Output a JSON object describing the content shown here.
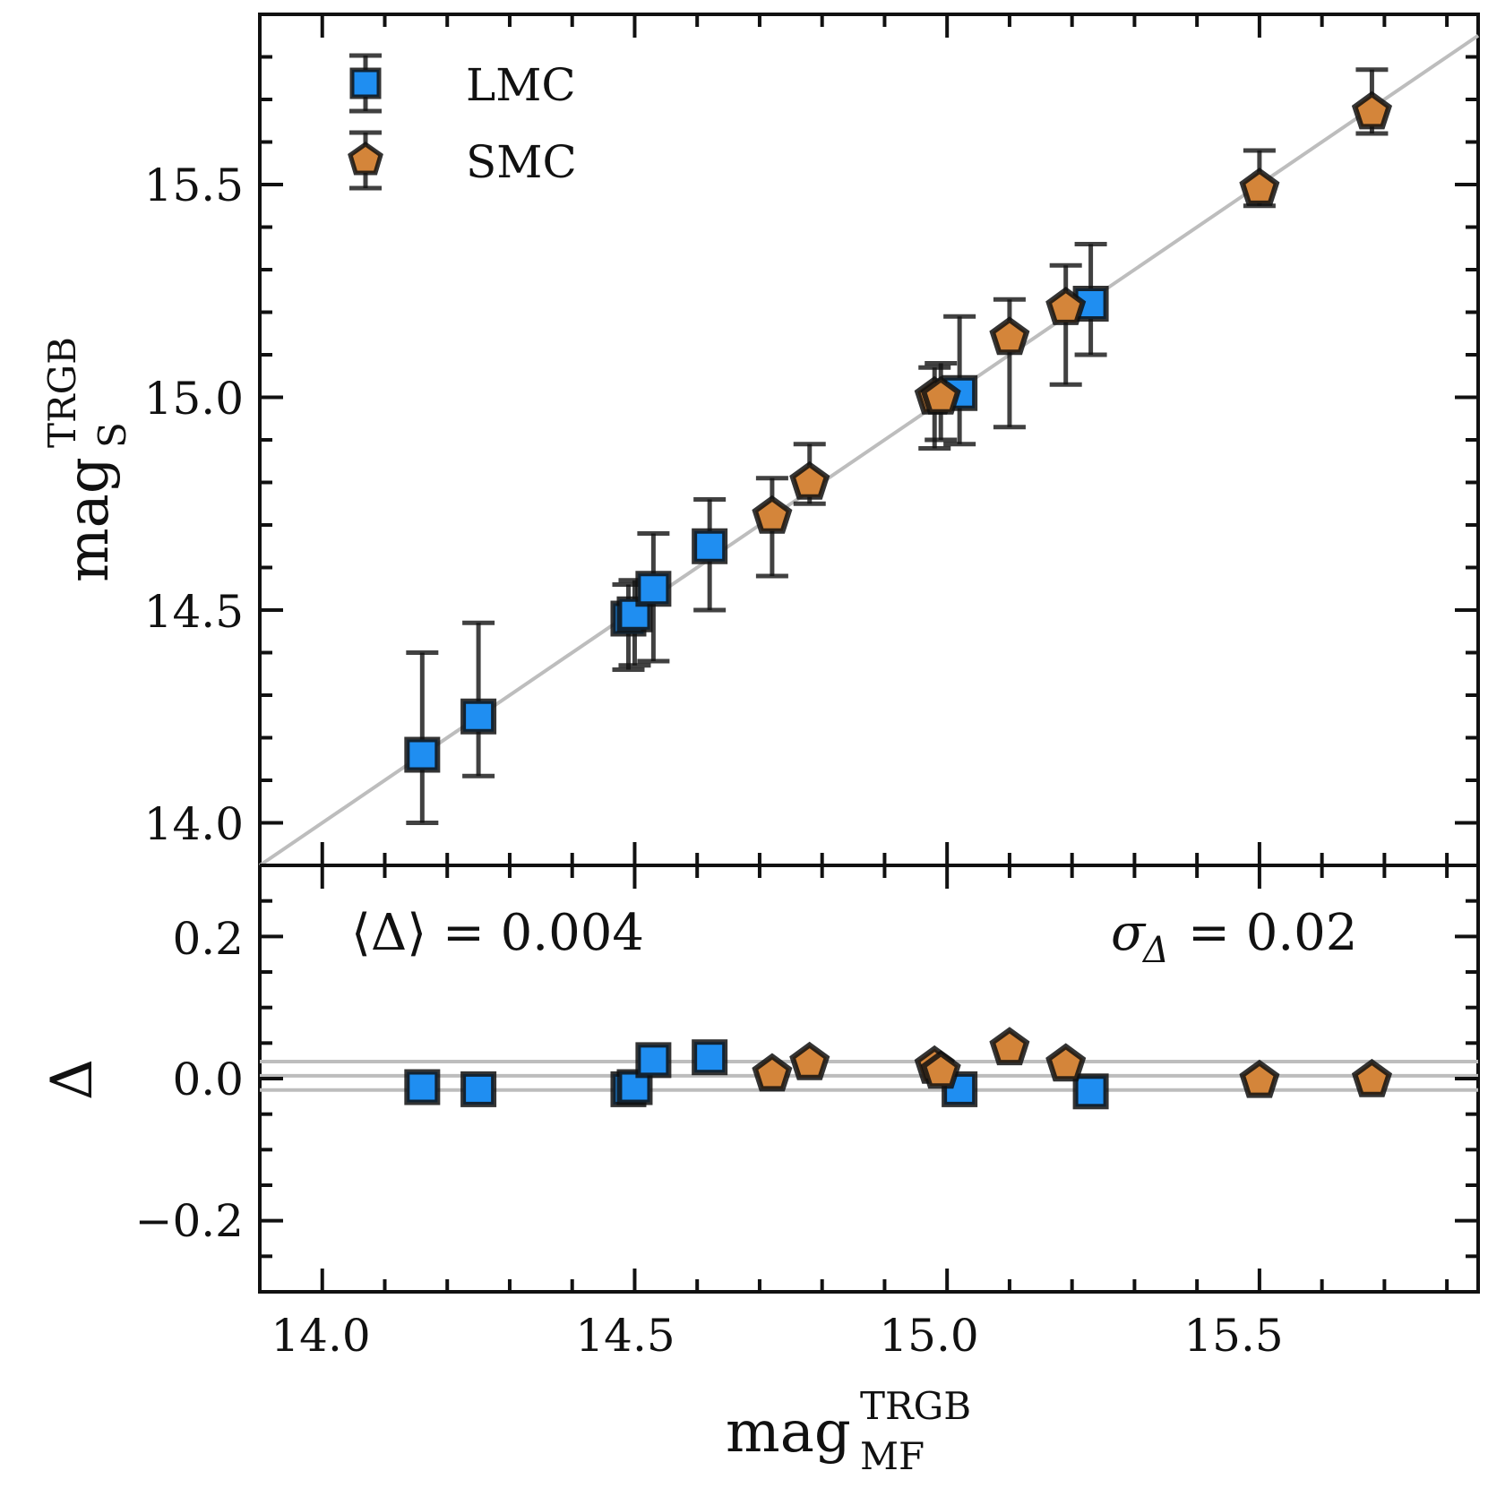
{
  "chart_data": {
    "type": "scatter",
    "colors": {
      "LMC": "#1f8ef1",
      "SMC": "#d4853a",
      "edge": "#111111",
      "line": "#bdbdbd"
    },
    "top_panel": {
      "xlim": [
        13.9,
        15.85
      ],
      "ylim": [
        13.9,
        15.9
      ],
      "yticks": [
        "14.0",
        "14.5",
        "15.0",
        "15.5"
      ],
      "ylabel_base": "mag",
      "ylabel_sup": "TRGB",
      "ylabel_sub": "S",
      "legend": [
        {
          "name": "LMC",
          "marker": "square"
        },
        {
          "name": "SMC",
          "marker": "pentagon"
        }
      ],
      "identity_line": true
    },
    "bottom_panel": {
      "ylim": [
        -0.3,
        0.3
      ],
      "yticks": [
        "0.2",
        "0.0",
        "−0.2"
      ],
      "ylabel": "Δ",
      "mean_line": 0.004,
      "sigma_band": 0.02,
      "annotation_left": "⟨Δ⟩ = 0.004",
      "annotation_right_symbol": "σ",
      "annotation_right_sub": "Δ",
      "annotation_right_value": " = 0.02"
    },
    "xticks": [
      "14.0",
      "14.5",
      "15.0",
      "15.5"
    ],
    "xlabel_base": "mag",
    "xlabel_sup": "TRGB",
    "xlabel_sub": "MF",
    "series": [
      {
        "name": "LMC",
        "marker": "square",
        "points": [
          {
            "x": 14.16,
            "y": 14.16,
            "ylo": 14.0,
            "yhi": 14.4,
            "delta": -0.012
          },
          {
            "x": 14.25,
            "y": 14.25,
            "ylo": 14.11,
            "yhi": 14.47,
            "delta": -0.015
          },
          {
            "x": 14.49,
            "y": 14.48,
            "ylo": 14.36,
            "yhi": 14.56,
            "delta": -0.015
          },
          {
            "x": 14.5,
            "y": 14.49,
            "ylo": 14.37,
            "yhi": 14.57,
            "delta": -0.012
          },
          {
            "x": 14.53,
            "y": 14.55,
            "ylo": 14.38,
            "yhi": 14.68,
            "delta": 0.026
          },
          {
            "x": 14.62,
            "y": 14.65,
            "ylo": 14.5,
            "yhi": 14.76,
            "delta": 0.03
          },
          {
            "x": 15.02,
            "y": 15.01,
            "ylo": 14.89,
            "yhi": 15.19,
            "delta": -0.015
          },
          {
            "x": 15.23,
            "y": 15.22,
            "ylo": 15.1,
            "yhi": 15.36,
            "delta": -0.018
          }
        ]
      },
      {
        "name": "SMC",
        "marker": "pentagon",
        "points": [
          {
            "x": 14.72,
            "y": 14.72,
            "ylo": 14.58,
            "yhi": 14.81,
            "delta": 0.006
          },
          {
            "x": 14.78,
            "y": 14.8,
            "ylo": 14.75,
            "yhi": 14.89,
            "delta": 0.022
          },
          {
            "x": 14.98,
            "y": 15.0,
            "ylo": 14.88,
            "yhi": 15.07,
            "delta": 0.017
          },
          {
            "x": 14.99,
            "y": 15.0,
            "ylo": 14.9,
            "yhi": 15.08,
            "delta": 0.01
          },
          {
            "x": 15.1,
            "y": 15.14,
            "ylo": 14.93,
            "yhi": 15.23,
            "delta": 0.043
          },
          {
            "x": 15.19,
            "y": 15.21,
            "ylo": 15.03,
            "yhi": 15.31,
            "delta": 0.02
          },
          {
            "x": 15.5,
            "y": 15.49,
            "ylo": 15.45,
            "yhi": 15.58,
            "delta": -0.003
          },
          {
            "x": 15.68,
            "y": 15.67,
            "ylo": 15.62,
            "yhi": 15.77,
            "delta": -0.002
          }
        ]
      }
    ]
  }
}
